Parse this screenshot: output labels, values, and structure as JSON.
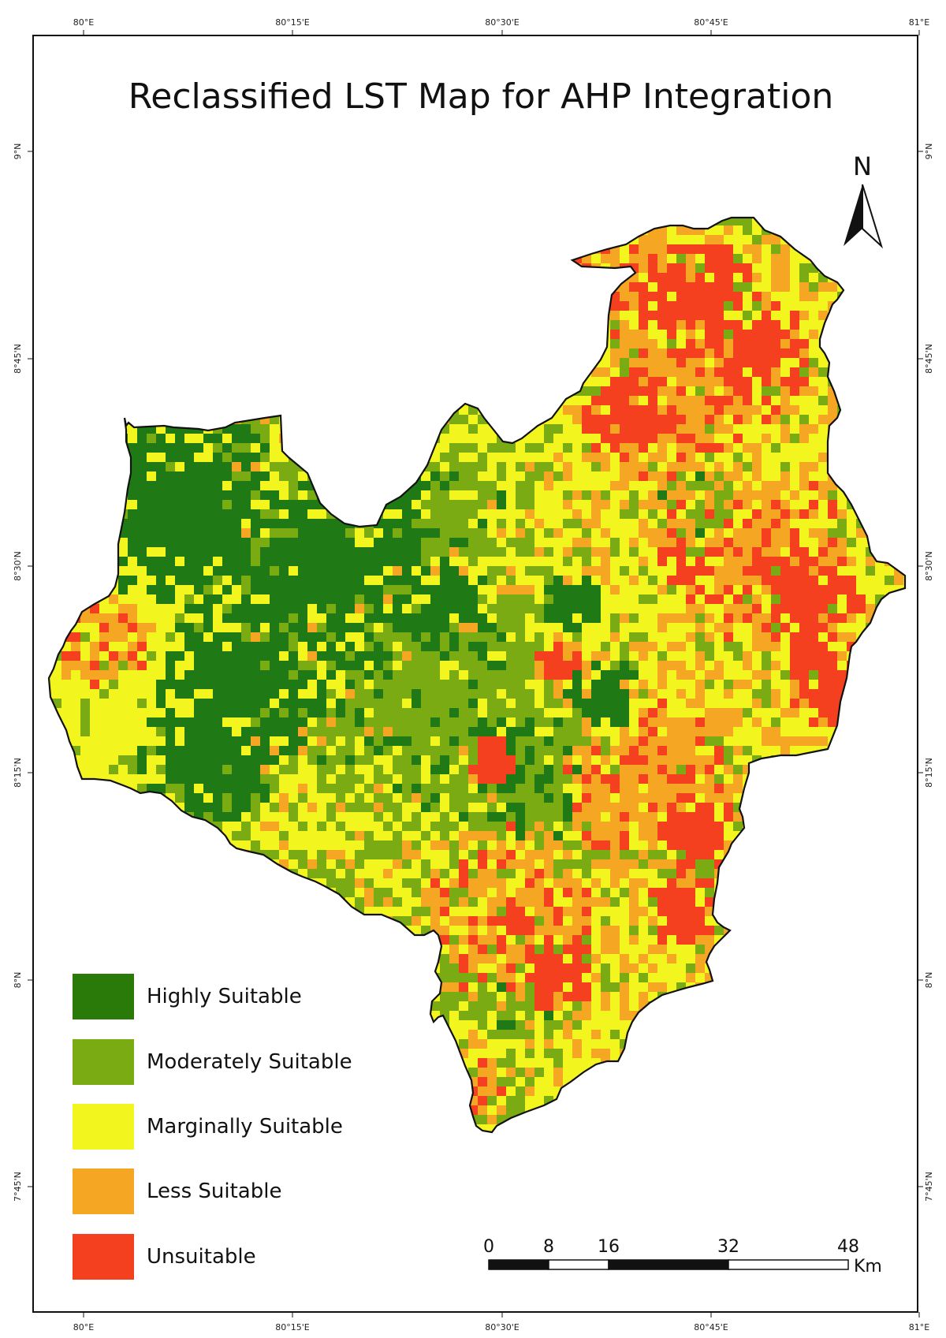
{
  "title": "Reclassified LST Map for AHP Integration",
  "graticule": {
    "top_labels": [
      "80°E",
      "80°15'E",
      "80°30'E",
      "80°45'E",
      "81°E"
    ],
    "bottom_labels": [
      "80°E",
      "80°15'E",
      "80°30'E",
      "80°45'E",
      "81°E"
    ],
    "left_labels": [
      "9°N",
      "8°45'N",
      "8°30'N",
      "8°15'N",
      "8°N",
      "7°45'N"
    ],
    "right_labels": [
      "9°N",
      "8°45'N",
      "8°30'N",
      "8°15'N",
      "8°N",
      "7°45'N"
    ]
  },
  "north_arrow": {
    "label": "N",
    "icon": "north-arrow-icon"
  },
  "legend": {
    "items": [
      {
        "label": "Highly Suitable",
        "color": "#2a7a0a"
      },
      {
        "label": "Moderately Suitable",
        "color": "#7aab12"
      },
      {
        "label": "Marginally Suitable",
        "color": "#f2f51e"
      },
      {
        "label": "Less Suitable",
        "color": "#f5a623"
      },
      {
        "label": "Unsuitable",
        "color": "#f4401e"
      }
    ]
  },
  "scale_bar": {
    "ticks": [
      "0",
      "8",
      "16",
      "32",
      "48"
    ],
    "unit": "Km"
  },
  "colors": {
    "highly": "#1f7a16",
    "moderately": "#7aab12",
    "marginally": "#f2f51e",
    "less": "#f5a623",
    "unsuitable": "#f4401e"
  }
}
